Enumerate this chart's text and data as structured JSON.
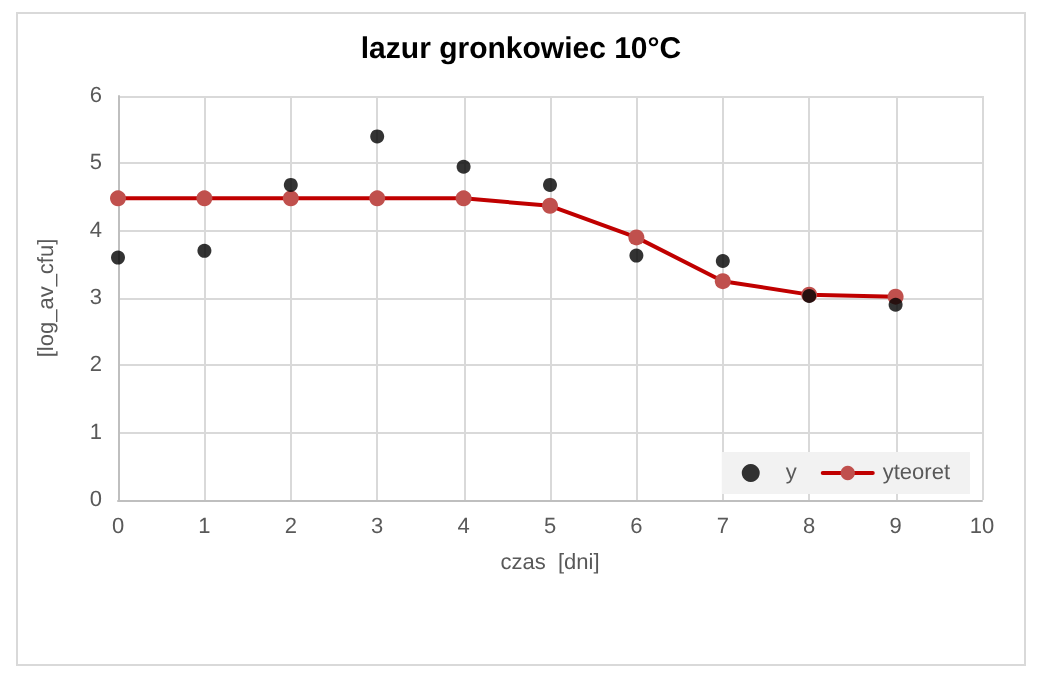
{
  "chart_data": {
    "type": "scatter",
    "title": "lazur gronkowiec 10°C",
    "xlabel": "czas  [dni]",
    "ylabel": "[log_av_cfu]",
    "xlim": [
      0,
      10
    ],
    "xticks": [
      0,
      1,
      2,
      3,
      4,
      5,
      6,
      7,
      8,
      9,
      10
    ],
    "ylim": [
      0,
      6
    ],
    "yticks": [
      0,
      1,
      2,
      3,
      4,
      5,
      6
    ],
    "grid": true,
    "legend": "bottom right",
    "series": [
      {
        "name": "y",
        "color": "#000000",
        "marker": "circle",
        "x": [
          0,
          1,
          2,
          3,
          4,
          5,
          6,
          7,
          8,
          9
        ],
        "values": [
          3.6,
          3.7,
          4.68,
          5.4,
          4.95,
          4.68,
          3.63,
          3.55,
          3.03,
          2.9
        ]
      },
      {
        "name": "yteoret",
        "type": "line",
        "color": "#c0504d",
        "marker": "circle",
        "line_style": "solid",
        "x": [
          0,
          1,
          2,
          3,
          4,
          5,
          6,
          7,
          8,
          9
        ],
        "values": [
          4.48,
          4.48,
          4.48,
          4.48,
          4.48,
          4.37,
          3.9,
          3.25,
          3.05,
          3.02
        ]
      }
    ]
  }
}
